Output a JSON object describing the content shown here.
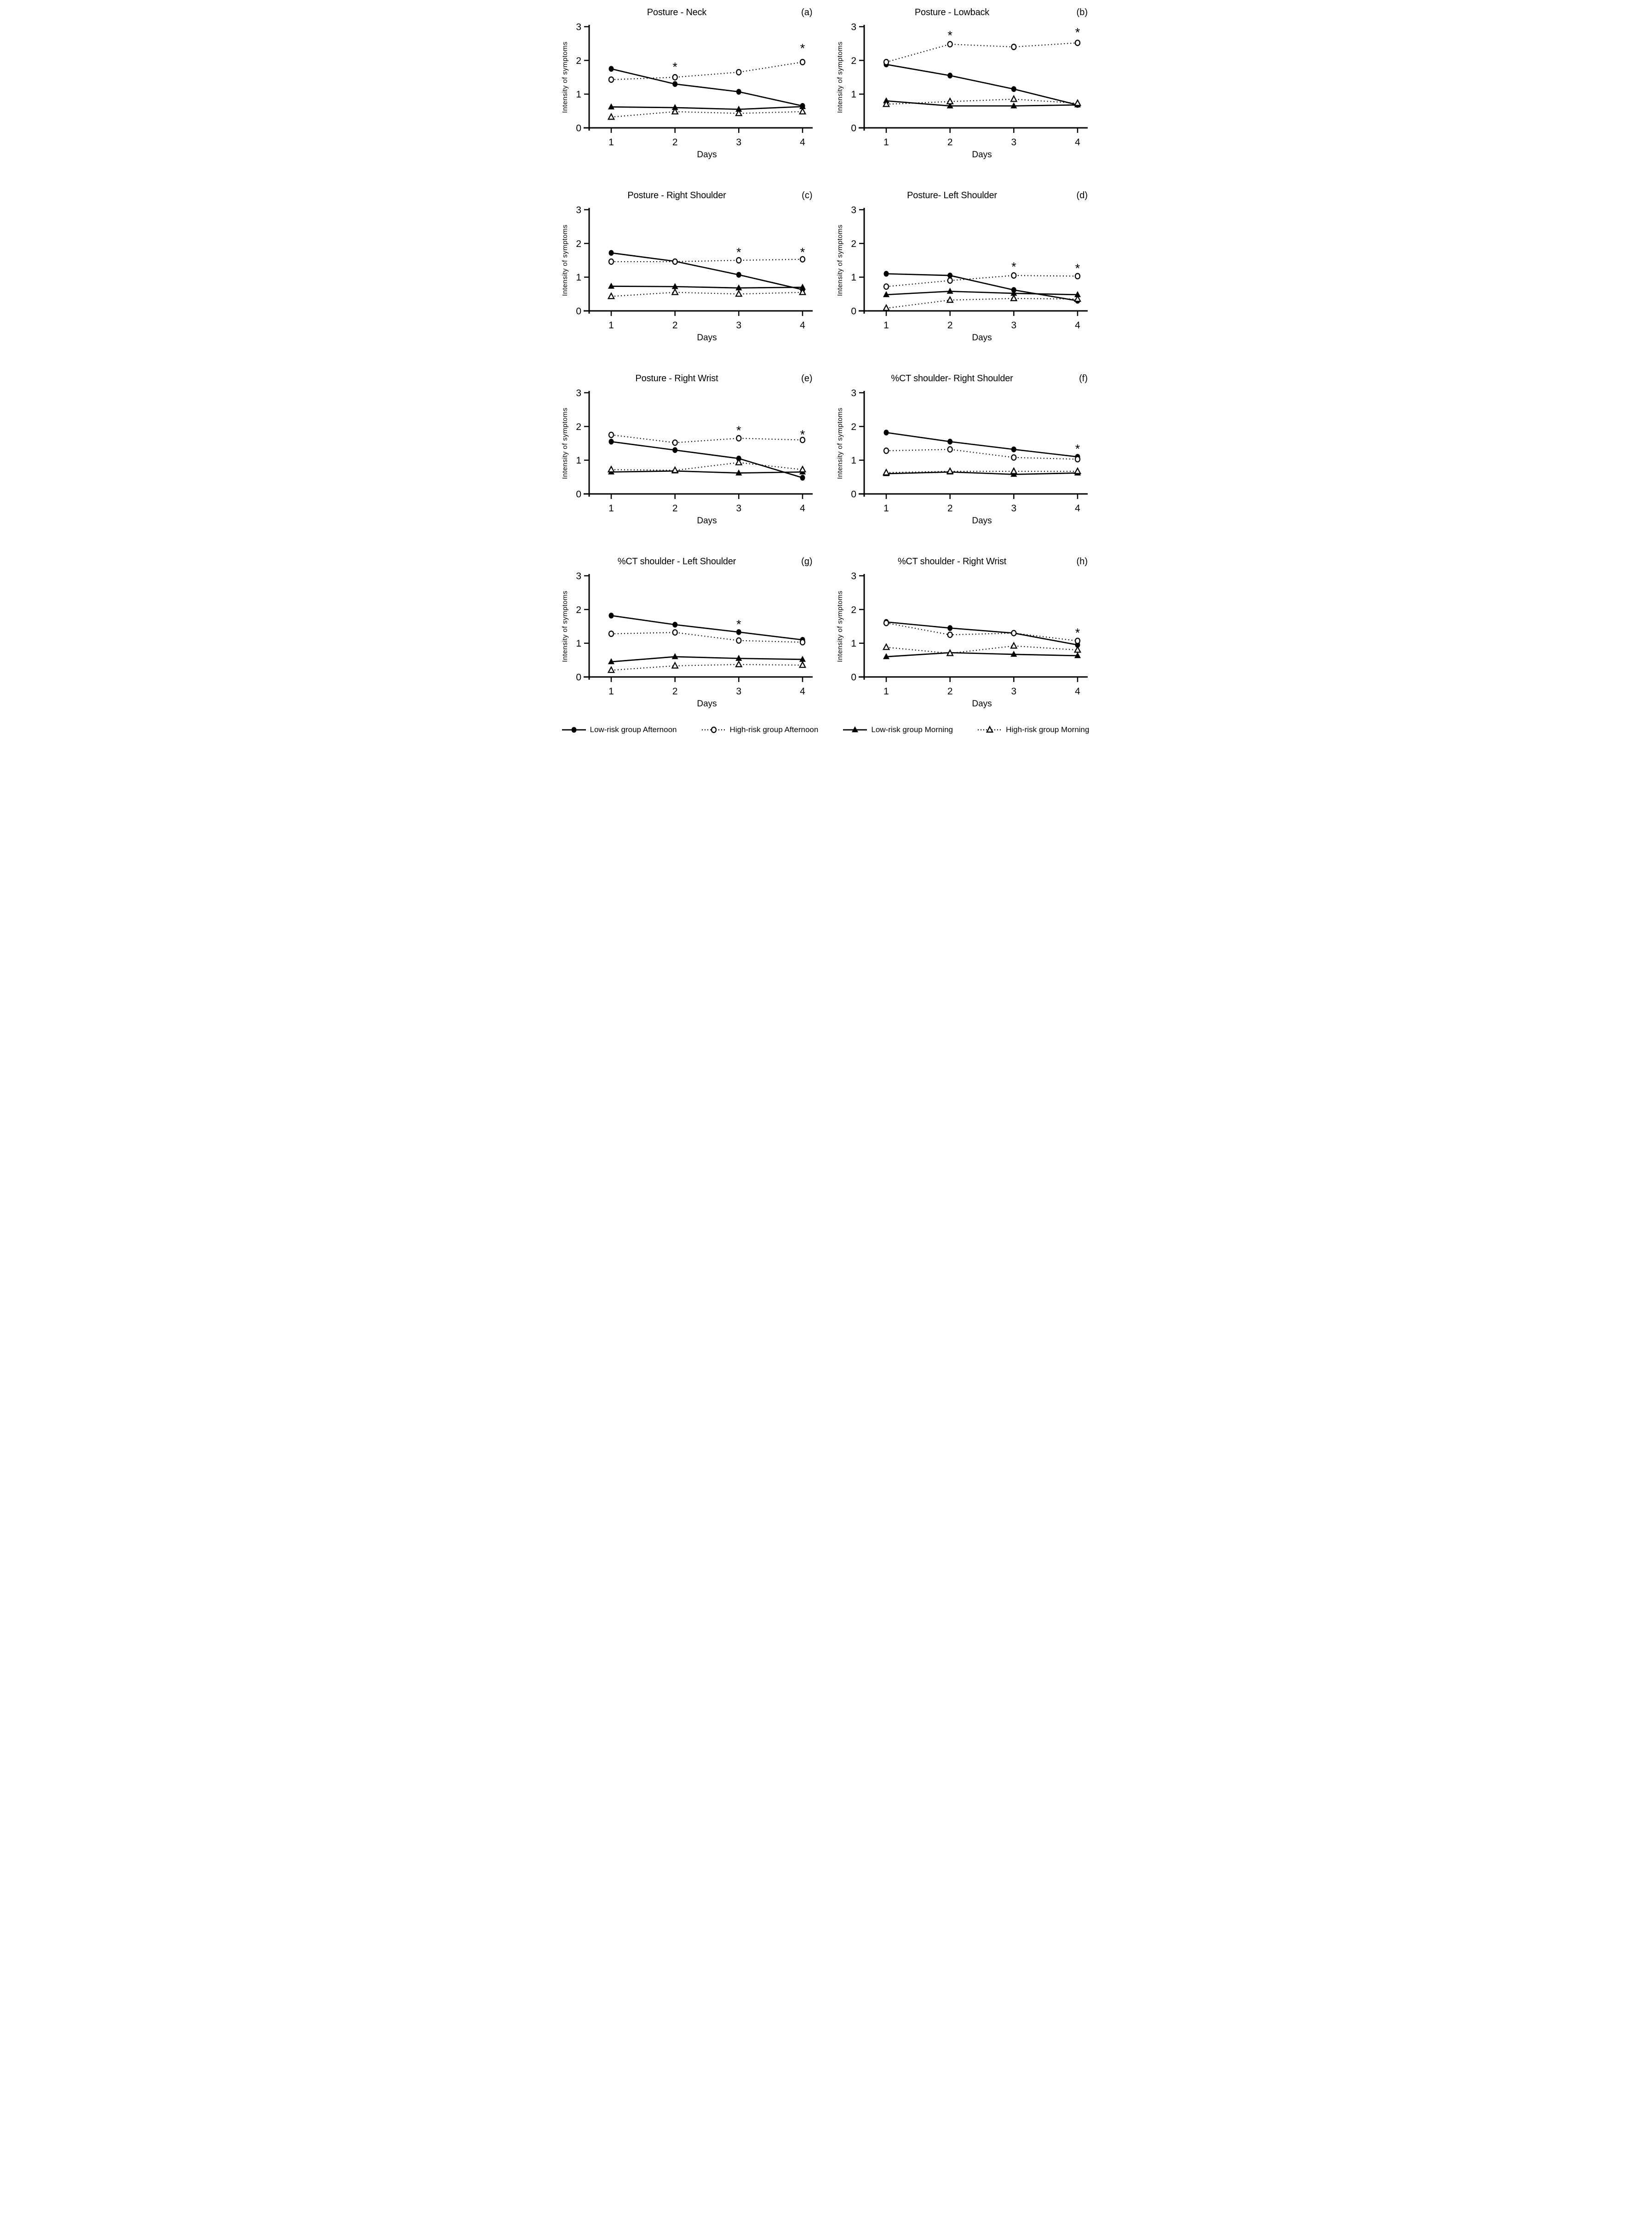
{
  "colors": {
    "foreground": "#000000",
    "background": "#ffffff"
  },
  "axes": {
    "xlabel": "Days",
    "ylabel": "Intensity of symptoms",
    "x_ticks": [
      1,
      2,
      3,
      4
    ],
    "y_ticks": [
      0,
      1,
      2,
      3
    ],
    "ylim": [
      0,
      3
    ]
  },
  "legend": {
    "items": [
      {
        "label": "Low-risk group Afternoon",
        "marker": "filled-circle",
        "line": "solid"
      },
      {
        "label": "High-risk group Afternoon",
        "marker": "open-circle",
        "line": "dotted"
      },
      {
        "label": "Low-risk group Morning",
        "marker": "filled-triangle",
        "line": "solid"
      },
      {
        "label": "High-risk group Morning",
        "marker": "open-triangle",
        "line": "dotted"
      }
    ]
  },
  "chart_data": [
    {
      "panel": "(a)",
      "title": "Posture - Neck",
      "type": "line",
      "x": [
        1,
        2,
        3,
        4
      ],
      "series": [
        {
          "name": "Low-risk group Afternoon",
          "values": [
            1.75,
            1.3,
            1.07,
            0.65
          ]
        },
        {
          "name": "High-risk group Afternoon",
          "values": [
            1.43,
            1.5,
            1.65,
            1.95
          ]
        },
        {
          "name": "Low-risk group Morning",
          "values": [
            0.62,
            0.6,
            0.55,
            0.63
          ]
        },
        {
          "name": "High-risk group Morning",
          "values": [
            0.32,
            0.48,
            0.43,
            0.48
          ]
        }
      ],
      "asterisks": [
        {
          "x": 2,
          "y": 1.85
        },
        {
          "x": 4,
          "y": 2.4
        }
      ]
    },
    {
      "panel": "(b)",
      "title": "Posture - Lowback",
      "type": "line",
      "x": [
        1,
        2,
        3,
        4
      ],
      "series": [
        {
          "name": "Low-risk group Afternoon",
          "values": [
            1.88,
            1.55,
            1.15,
            0.68
          ]
        },
        {
          "name": "High-risk group Afternoon",
          "values": [
            1.95,
            2.48,
            2.4,
            2.52
          ]
        },
        {
          "name": "Low-risk group Morning",
          "values": [
            0.8,
            0.65,
            0.65,
            0.68
          ]
        },
        {
          "name": "High-risk group Morning",
          "values": [
            0.7,
            0.78,
            0.85,
            0.73
          ]
        }
      ],
      "asterisks": [
        {
          "x": 2,
          "y": 2.78
        },
        {
          "x": 4,
          "y": 2.87
        }
      ]
    },
    {
      "panel": "(c)",
      "title": "Posture - Right Shoulder",
      "type": "line",
      "x": [
        1,
        2,
        3,
        4
      ],
      "series": [
        {
          "name": "Low-risk group Afternoon",
          "values": [
            1.72,
            1.47,
            1.07,
            0.63
          ]
        },
        {
          "name": "High-risk group Afternoon",
          "values": [
            1.46,
            1.46,
            1.5,
            1.53
          ]
        },
        {
          "name": "Low-risk group Morning",
          "values": [
            0.73,
            0.72,
            0.68,
            0.7
          ]
        },
        {
          "name": "High-risk group Morning",
          "values": [
            0.43,
            0.55,
            0.5,
            0.55
          ]
        }
      ],
      "asterisks": [
        {
          "x": 3,
          "y": 1.78
        },
        {
          "x": 4,
          "y": 1.78
        }
      ]
    },
    {
      "panel": "(d)",
      "title": "Posture- Left Shoulder",
      "type": "line",
      "x": [
        1,
        2,
        3,
        4
      ],
      "series": [
        {
          "name": "Low-risk group Afternoon",
          "values": [
            1.1,
            1.05,
            0.62,
            0.3
          ]
        },
        {
          "name": "High-risk group Afternoon",
          "values": [
            0.72,
            0.9,
            1.05,
            1.03
          ]
        },
        {
          "name": "Low-risk group Morning",
          "values": [
            0.48,
            0.58,
            0.52,
            0.48
          ]
        },
        {
          "name": "High-risk group Morning",
          "values": [
            0.08,
            0.32,
            0.37,
            0.35
          ]
        }
      ],
      "asterisks": [
        {
          "x": 3,
          "y": 1.35
        },
        {
          "x": 4,
          "y": 1.3
        }
      ]
    },
    {
      "panel": "(e)",
      "title": "Posture - Right Wrist",
      "type": "line",
      "x": [
        1,
        2,
        3,
        4
      ],
      "series": [
        {
          "name": "Low-risk group Afternoon",
          "values": [
            1.55,
            1.3,
            1.05,
            0.48
          ]
        },
        {
          "name": "High-risk group Afternoon",
          "values": [
            1.75,
            1.52,
            1.65,
            1.6
          ]
        },
        {
          "name": "Low-risk group Morning",
          "values": [
            0.65,
            0.68,
            0.62,
            0.65
          ]
        },
        {
          "name": "High-risk group Morning",
          "values": [
            0.72,
            0.7,
            0.93,
            0.72
          ]
        }
      ],
      "asterisks": [
        {
          "x": 3,
          "y": 1.92
        },
        {
          "x": 4,
          "y": 1.8
        }
      ]
    },
    {
      "panel": "(f)",
      "title": "%CT shoulder- Right Shoulder",
      "type": "line",
      "x": [
        1,
        2,
        3,
        4
      ],
      "series": [
        {
          "name": "Low-risk group Afternoon",
          "values": [
            1.82,
            1.55,
            1.32,
            1.1
          ]
        },
        {
          "name": "High-risk group Afternoon",
          "values": [
            1.28,
            1.32,
            1.08,
            1.03
          ]
        },
        {
          "name": "Low-risk group Morning",
          "values": [
            0.6,
            0.65,
            0.58,
            0.62
          ]
        },
        {
          "name": "High-risk group Morning",
          "values": [
            0.63,
            0.67,
            0.67,
            0.67
          ]
        }
      ],
      "asterisks": [
        {
          "x": 4,
          "y": 1.38
        }
      ]
    },
    {
      "panel": "(g)",
      "title": "%CT shoulder - Left Shoulder",
      "type": "line",
      "x": [
        1,
        2,
        3,
        4
      ],
      "series": [
        {
          "name": "Low-risk group Afternoon",
          "values": [
            1.82,
            1.55,
            1.33,
            1.1
          ]
        },
        {
          "name": "High-risk group Afternoon",
          "values": [
            1.28,
            1.32,
            1.08,
            1.03
          ]
        },
        {
          "name": "Low-risk group Morning",
          "values": [
            0.45,
            0.6,
            0.55,
            0.52
          ]
        },
        {
          "name": "High-risk group Morning",
          "values": [
            0.2,
            0.33,
            0.37,
            0.35
          ]
        }
      ],
      "asterisks": [
        {
          "x": 3,
          "y": 1.6
        }
      ]
    },
    {
      "panel": "(h)",
      "title": "%CT shoulder - Right Wrist",
      "type": "line",
      "x": [
        1,
        2,
        3,
        4
      ],
      "series": [
        {
          "name": "Low-risk group Afternoon",
          "values": [
            1.63,
            1.45,
            1.3,
            0.95
          ]
        },
        {
          "name": "High-risk group Afternoon",
          "values": [
            1.6,
            1.25,
            1.3,
            1.07
          ]
        },
        {
          "name": "Low-risk group Morning",
          "values": [
            0.6,
            0.72,
            0.67,
            0.63
          ]
        },
        {
          "name": "High-risk group Morning",
          "values": [
            0.88,
            0.7,
            0.92,
            0.8
          ]
        }
      ],
      "asterisks": [
        {
          "x": 4,
          "y": 1.35
        }
      ]
    }
  ]
}
